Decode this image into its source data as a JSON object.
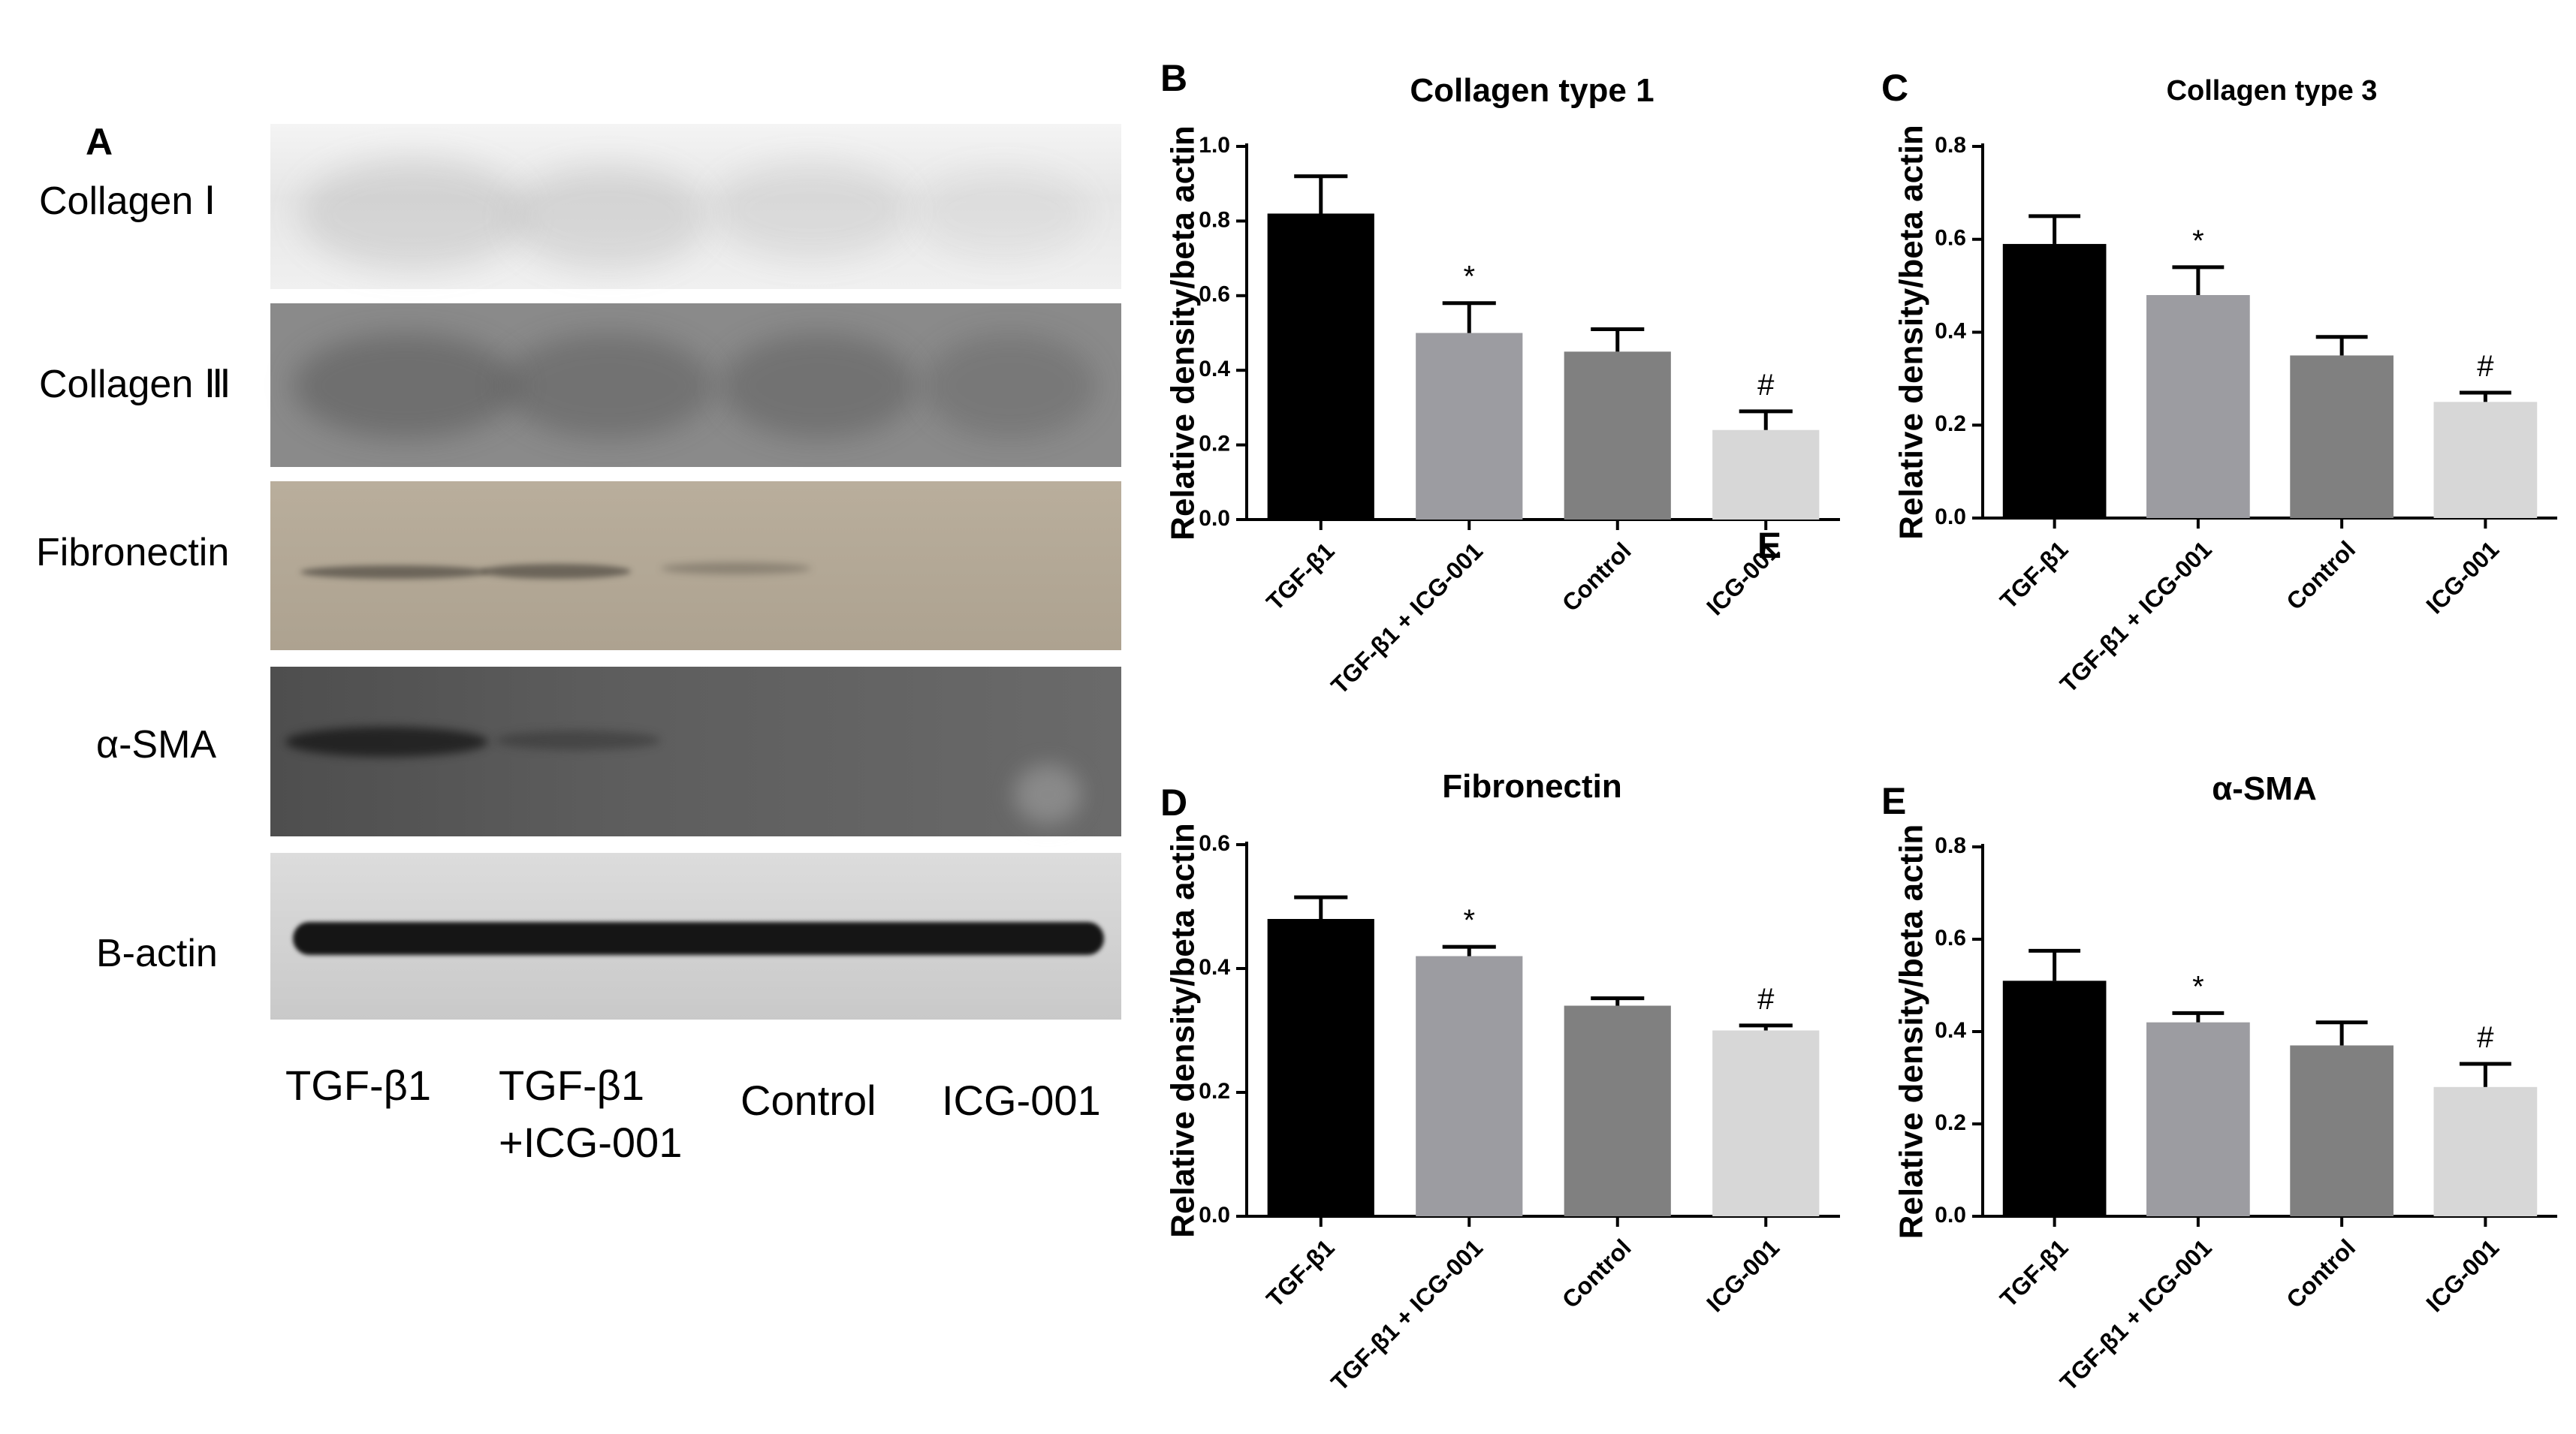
{
  "figure": {
    "panel_a": {
      "letter": "A",
      "rows": [
        {
          "label": "Collagen Ⅰ",
          "bg": "#e9e9e9"
        },
        {
          "label": "Collagen Ⅲ",
          "bg": "#7e7e7e"
        },
        {
          "label": "Fibronectin",
          "bg": "#b2a796"
        },
        {
          "label": "α-SMA",
          "bg": "#5a5a5a"
        },
        {
          "label": "B-actin",
          "bg": "#cfcfcf"
        }
      ],
      "lanes": [
        {
          "line1": "TGF-β1",
          "line2": ""
        },
        {
          "line1": "TGF-β1",
          "line2": "+ICG-001"
        },
        {
          "line1": "Control",
          "line2": ""
        },
        {
          "line1": "ICG-001",
          "line2": ""
        }
      ]
    },
    "stray_labels": {
      "panel_b_e": "E",
      "panel_d_d": "D"
    }
  },
  "chart_data": [
    {
      "letter": "B",
      "type": "bar",
      "title": "Collagen type 1",
      "ylabel": "Relative density/beta actin",
      "categories": [
        "TGF-β1",
        "TGF-β1 + ICG-001",
        "Control",
        "ICG-001"
      ],
      "values": [
        0.82,
        0.5,
        0.45,
        0.24
      ],
      "errors": [
        0.1,
        0.08,
        0.06,
        0.05
      ],
      "annotations": [
        "",
        "*",
        "",
        "#"
      ],
      "colors": [
        "#000000",
        "#9c9ca1",
        "#808080",
        "#d7d7d7"
      ],
      "ylim": [
        0,
        1.0
      ],
      "yticks": [
        "0.0",
        "0.2",
        "0.4",
        "0.6",
        "0.8",
        "1.0"
      ],
      "grid": false
    },
    {
      "letter": "C",
      "type": "bar",
      "title": "Collagen type 3",
      "ylabel": "Relative density/beta actin",
      "categories": [
        "TGF-β1",
        "TGF-β1 + ICG-001",
        "Control",
        "ICG-001"
      ],
      "values": [
        0.59,
        0.48,
        0.35,
        0.25
      ],
      "errors": [
        0.06,
        0.06,
        0.04,
        0.02
      ],
      "annotations": [
        "",
        "*",
        "",
        "#"
      ],
      "colors": [
        "#000000",
        "#9c9ca1",
        "#808080",
        "#d7d7d7"
      ],
      "ylim": [
        0,
        0.8
      ],
      "yticks": [
        "0.0",
        "0.2",
        "0.4",
        "0.6",
        "0.8"
      ],
      "grid": false
    },
    {
      "letter": "D",
      "type": "bar",
      "title": "Fibronectin",
      "ylabel": "Relative density/beta actin",
      "categories": [
        "TGF-β1",
        "TGF-β1 + ICG-001",
        "Control",
        "ICG-001"
      ],
      "values": [
        0.48,
        0.42,
        0.34,
        0.3
      ],
      "errors": [
        0.035,
        0.015,
        0.012,
        0.008
      ],
      "annotations": [
        "",
        "*",
        "",
        "#"
      ],
      "colors": [
        "#000000",
        "#9c9ca1",
        "#808080",
        "#d7d7d7"
      ],
      "ylim": [
        0,
        0.6
      ],
      "yticks": [
        "0.0",
        "0.2",
        "0.4",
        "0.6"
      ],
      "grid": false
    },
    {
      "letter": "E",
      "type": "bar",
      "title": "α-SMA",
      "ylabel": "Relative density/beta actin",
      "categories": [
        "TGF-β1",
        "TGF-β1 + ICG-001",
        "Control",
        "ICG-001"
      ],
      "values": [
        0.51,
        0.42,
        0.37,
        0.28
      ],
      "errors": [
        0.065,
        0.02,
        0.05,
        0.05
      ],
      "annotations": [
        "",
        "*",
        "",
        "#"
      ],
      "colors": [
        "#000000",
        "#9c9ca1",
        "#808080",
        "#d7d7d7"
      ],
      "ylim": [
        0,
        0.8
      ],
      "yticks": [
        "0.0",
        "0.2",
        "0.4",
        "0.6",
        "0.8"
      ],
      "grid": false
    }
  ]
}
